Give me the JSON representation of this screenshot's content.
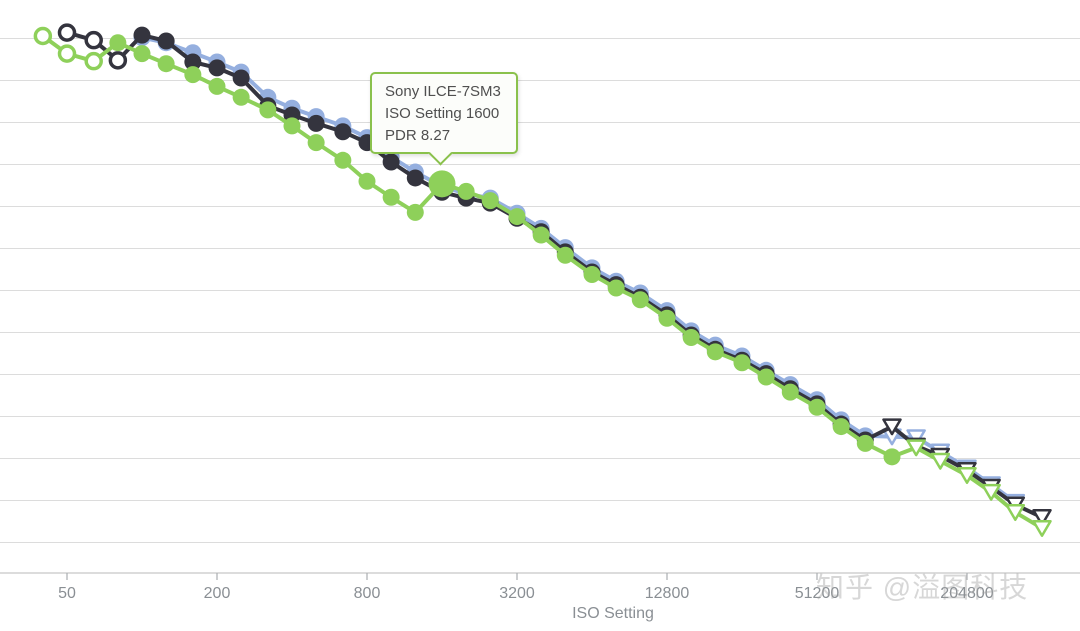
{
  "tooltip": {
    "line1": "Sony ILCE-7SM3",
    "line2": "ISO Setting 1600",
    "line3": "PDR 8.27",
    "border_color": "#8ac14c",
    "anchor_iso": 1600,
    "anchor_pdr": 8.27
  },
  "watermark": "知乎 @溢图科技",
  "colors": {
    "gridline": "#dcdcdc",
    "axis_line": "#c8c8c8",
    "tick": "#a9adb1",
    "tick_label": "#8a8f94",
    "green_series": "#8ed05a",
    "dark_series": "#34343e",
    "blue_series": "#95afdf",
    "tooltip_border": "#8ac14c",
    "background": "#ffffff"
  },
  "chart_data": {
    "type": "line",
    "title": "",
    "xlabel": "ISO Setting",
    "ylabel": "",
    "x_axis": {
      "label": "ISO Setting",
      "scale": "log2",
      "ticks": [
        50,
        200,
        800,
        3200,
        12800,
        51200,
        204800
      ],
      "tick_labels": [
        "50",
        "200",
        "800",
        "3200",
        "12800",
        "51200",
        "204800"
      ]
    },
    "y_axis": {
      "label": "",
      "unit": "PDR",
      "top_gridline_pdr": 10.0,
      "gridline_step_pdr": 0.5,
      "gridline_count": 13,
      "labels_visible": false
    },
    "grid": true,
    "legend": "none",
    "marker_legend": {
      "o": "open-circle (extended low ISO)",
      "f": "filled-circle (native ISO)",
      "t": "open-triangle-down (extended high ISO)",
      "F": "highlighted-large-circle"
    },
    "highlight": {
      "series": "Sony ILCE-7SM3",
      "iso": 1600,
      "pdr": 8.27
    },
    "series": [
      {
        "name": "unlabeled-blue-series",
        "color": "#95afdf",
        "points": [
          {
            "iso": 100,
            "pdr": 10.01,
            "m": "f"
          },
          {
            "iso": 125,
            "pdr": 9.95,
            "m": "f"
          },
          {
            "iso": 160,
            "pdr": 9.83,
            "m": "f"
          },
          {
            "iso": 200,
            "pdr": 9.72,
            "m": "f"
          },
          {
            "iso": 250,
            "pdr": 9.6,
            "m": "f"
          },
          {
            "iso": 320,
            "pdr": 9.3,
            "m": "f"
          },
          {
            "iso": 400,
            "pdr": 9.17,
            "m": "f"
          },
          {
            "iso": 500,
            "pdr": 9.07,
            "m": "f"
          },
          {
            "iso": 640,
            "pdr": 8.96,
            "m": "f"
          },
          {
            "iso": 800,
            "pdr": 8.82,
            "m": "f"
          },
          {
            "iso": 1000,
            "pdr": 8.59,
            "m": "f"
          },
          {
            "iso": 1250,
            "pdr": 8.41,
            "m": "f"
          },
          {
            "iso": 1600,
            "pdr": 8.24,
            "m": "f"
          },
          {
            "iso": 2000,
            "pdr": 8.15,
            "m": "f"
          },
          {
            "iso": 2500,
            "pdr": 8.1,
            "m": "f"
          },
          {
            "iso": 3200,
            "pdr": 7.92,
            "m": "f"
          },
          {
            "iso": 4000,
            "pdr": 7.74,
            "m": "f"
          },
          {
            "iso": 5000,
            "pdr": 7.51,
            "m": "f"
          },
          {
            "iso": 6400,
            "pdr": 7.27,
            "m": "f"
          },
          {
            "iso": 8000,
            "pdr": 7.11,
            "m": "f"
          },
          {
            "iso": 10000,
            "pdr": 6.97,
            "m": "f"
          },
          {
            "iso": 12800,
            "pdr": 6.76,
            "m": "f"
          },
          {
            "iso": 16000,
            "pdr": 6.52,
            "m": "f"
          },
          {
            "iso": 20000,
            "pdr": 6.35,
            "m": "f"
          },
          {
            "iso": 25600,
            "pdr": 6.22,
            "m": "f"
          },
          {
            "iso": 32000,
            "pdr": 6.05,
            "m": "f"
          },
          {
            "iso": 40000,
            "pdr": 5.88,
            "m": "f"
          },
          {
            "iso": 51200,
            "pdr": 5.7,
            "m": "f"
          },
          {
            "iso": 64000,
            "pdr": 5.46,
            "m": "f"
          },
          {
            "iso": 80000,
            "pdr": 5.27,
            "m": "f"
          },
          {
            "iso": 102400,
            "pdr": 5.26,
            "m": "t"
          },
          {
            "iso": 128000,
            "pdr": 5.25,
            "m": "t"
          },
          {
            "iso": 160000,
            "pdr": 5.08,
            "m": "t"
          },
          {
            "iso": 204800,
            "pdr": 4.89,
            "m": "t"
          },
          {
            "iso": 256000,
            "pdr": 4.69,
            "m": "t"
          },
          {
            "iso": 320000,
            "pdr": 4.48,
            "m": "t"
          }
        ]
      },
      {
        "name": "unlabeled-dark-series",
        "color": "#34343e",
        "points": [
          {
            "iso": 50,
            "pdr": 10.07,
            "m": "o"
          },
          {
            "iso": 64,
            "pdr": 9.98,
            "m": "o"
          },
          {
            "iso": 80,
            "pdr": 9.74,
            "m": "o"
          },
          {
            "iso": 100,
            "pdr": 10.04,
            "m": "f"
          },
          {
            "iso": 125,
            "pdr": 9.97,
            "m": "f"
          },
          {
            "iso": 160,
            "pdr": 9.72,
            "m": "f"
          },
          {
            "iso": 200,
            "pdr": 9.65,
            "m": "f"
          },
          {
            "iso": 250,
            "pdr": 9.53,
            "m": "f"
          },
          {
            "iso": 320,
            "pdr": 9.2,
            "m": "f"
          },
          {
            "iso": 400,
            "pdr": 9.09,
            "m": "f"
          },
          {
            "iso": 500,
            "pdr": 8.99,
            "m": "f"
          },
          {
            "iso": 640,
            "pdr": 8.89,
            "m": "f"
          },
          {
            "iso": 800,
            "pdr": 8.76,
            "m": "f"
          },
          {
            "iso": 1000,
            "pdr": 8.53,
            "m": "f"
          },
          {
            "iso": 1250,
            "pdr": 8.34,
            "m": "f"
          },
          {
            "iso": 1600,
            "pdr": 8.17,
            "m": "f"
          },
          {
            "iso": 2000,
            "pdr": 8.1,
            "m": "f"
          },
          {
            "iso": 2500,
            "pdr": 8.04,
            "m": "f"
          },
          {
            "iso": 3200,
            "pdr": 7.86,
            "m": "f"
          },
          {
            "iso": 4000,
            "pdr": 7.7,
            "m": "f"
          },
          {
            "iso": 5000,
            "pdr": 7.46,
            "m": "f"
          },
          {
            "iso": 6400,
            "pdr": 7.22,
            "m": "f"
          },
          {
            "iso": 8000,
            "pdr": 7.07,
            "m": "f"
          },
          {
            "iso": 10000,
            "pdr": 6.92,
            "m": "f"
          },
          {
            "iso": 12800,
            "pdr": 6.71,
            "m": "f"
          },
          {
            "iso": 16000,
            "pdr": 6.47,
            "m": "f"
          },
          {
            "iso": 20000,
            "pdr": 6.3,
            "m": "f"
          },
          {
            "iso": 25600,
            "pdr": 6.17,
            "m": "f"
          },
          {
            "iso": 32000,
            "pdr": 6.01,
            "m": "f"
          },
          {
            "iso": 40000,
            "pdr": 5.83,
            "m": "f"
          },
          {
            "iso": 51200,
            "pdr": 5.65,
            "m": "f"
          },
          {
            "iso": 64000,
            "pdr": 5.41,
            "m": "f"
          },
          {
            "iso": 80000,
            "pdr": 5.22,
            "m": "f"
          },
          {
            "iso": 102400,
            "pdr": 5.38,
            "m": "t"
          },
          {
            "iso": 128000,
            "pdr": 5.15,
            "m": "t"
          },
          {
            "iso": 160000,
            "pdr": 5.03,
            "m": "t"
          },
          {
            "iso": 204800,
            "pdr": 4.86,
            "m": "t"
          },
          {
            "iso": 256000,
            "pdr": 4.66,
            "m": "t"
          },
          {
            "iso": 320000,
            "pdr": 4.45,
            "m": "t"
          },
          {
            "iso": 409600,
            "pdr": 4.3,
            "m": "t"
          }
        ]
      },
      {
        "name": "Sony ILCE-7SM3",
        "color": "#8ed05a",
        "points": [
          {
            "iso": 40,
            "pdr": 10.03,
            "m": "o"
          },
          {
            "iso": 50,
            "pdr": 9.82,
            "m": "o"
          },
          {
            "iso": 64,
            "pdr": 9.73,
            "m": "o"
          },
          {
            "iso": 80,
            "pdr": 9.95,
            "m": "f"
          },
          {
            "iso": 100,
            "pdr": 9.82,
            "m": "f"
          },
          {
            "iso": 125,
            "pdr": 9.7,
            "m": "f"
          },
          {
            "iso": 160,
            "pdr": 9.57,
            "m": "f"
          },
          {
            "iso": 200,
            "pdr": 9.43,
            "m": "f"
          },
          {
            "iso": 250,
            "pdr": 9.3,
            "m": "f"
          },
          {
            "iso": 320,
            "pdr": 9.15,
            "m": "f"
          },
          {
            "iso": 400,
            "pdr": 8.96,
            "m": "f"
          },
          {
            "iso": 500,
            "pdr": 8.76,
            "m": "f"
          },
          {
            "iso": 640,
            "pdr": 8.55,
            "m": "f"
          },
          {
            "iso": 800,
            "pdr": 8.3,
            "m": "f"
          },
          {
            "iso": 1000,
            "pdr": 8.11,
            "m": "f"
          },
          {
            "iso": 1250,
            "pdr": 7.93,
            "m": "f"
          },
          {
            "iso": 1600,
            "pdr": 8.27,
            "m": "F"
          },
          {
            "iso": 2000,
            "pdr": 8.18,
            "m": "f"
          },
          {
            "iso": 2500,
            "pdr": 8.07,
            "m": "f"
          },
          {
            "iso": 3200,
            "pdr": 7.88,
            "m": "f"
          },
          {
            "iso": 4000,
            "pdr": 7.66,
            "m": "f"
          },
          {
            "iso": 5000,
            "pdr": 7.42,
            "m": "f"
          },
          {
            "iso": 6400,
            "pdr": 7.19,
            "m": "f"
          },
          {
            "iso": 8000,
            "pdr": 7.03,
            "m": "f"
          },
          {
            "iso": 10000,
            "pdr": 6.89,
            "m": "f"
          },
          {
            "iso": 12800,
            "pdr": 6.67,
            "m": "f"
          },
          {
            "iso": 16000,
            "pdr": 6.44,
            "m": "f"
          },
          {
            "iso": 20000,
            "pdr": 6.27,
            "m": "f"
          },
          {
            "iso": 25600,
            "pdr": 6.14,
            "m": "f"
          },
          {
            "iso": 32000,
            "pdr": 5.97,
            "m": "f"
          },
          {
            "iso": 40000,
            "pdr": 5.79,
            "m": "f"
          },
          {
            "iso": 51200,
            "pdr": 5.61,
            "m": "f"
          },
          {
            "iso": 64000,
            "pdr": 5.38,
            "m": "f"
          },
          {
            "iso": 80000,
            "pdr": 5.18,
            "m": "f"
          },
          {
            "iso": 102400,
            "pdr": 5.02,
            "m": "f"
          },
          {
            "iso": 128000,
            "pdr": 5.13,
            "m": "t"
          },
          {
            "iso": 160000,
            "pdr": 4.97,
            "m": "t"
          },
          {
            "iso": 204800,
            "pdr": 4.8,
            "m": "t"
          },
          {
            "iso": 256000,
            "pdr": 4.6,
            "m": "t"
          },
          {
            "iso": 320000,
            "pdr": 4.36,
            "m": "t"
          },
          {
            "iso": 409600,
            "pdr": 4.17,
            "m": "t"
          }
        ]
      }
    ]
  }
}
